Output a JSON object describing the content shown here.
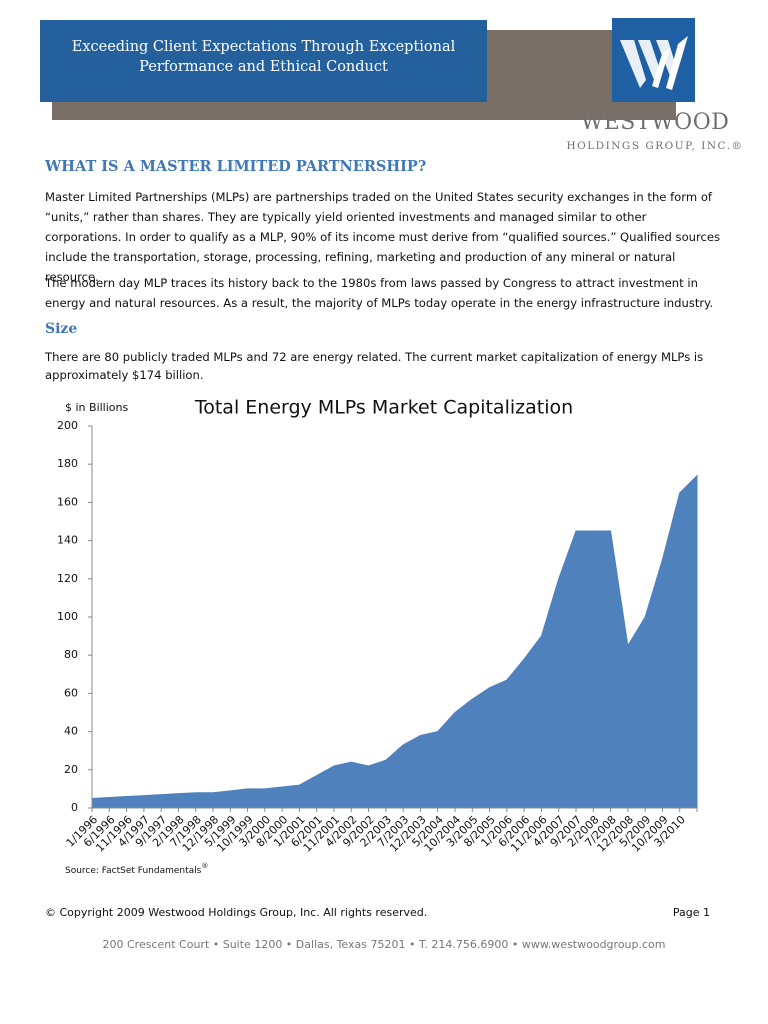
{
  "header": {
    "banner_lines": [
      "Exceeding Client Expectations Through Exceptional",
      "Performance and Ethical Conduct"
    ],
    "logo_name": "WESTWOOD",
    "logo_sub": "HOLDINGS GROUP, INC.®"
  },
  "section": {
    "heading": "WHAT IS A MASTER LIMITED PARTNERSHIP?",
    "paragraphs": [
      "Master Limited Partnerships (MLPs) are partnerships traded on the United States security exchanges in the form of “units,” rather than shares.  They are typically yield oriented investments and managed similar to other corporations.  In order to qualify as a MLP, 90% of its income must derive from “qualified sources.”  Qualified sources include the transportation, storage, processing, refining, marketing and production of any mineral or natural resource.",
      "The modern day MLP traces its history back to the 1980s from laws passed by Congress to attract investment in energy and natural resources.  As a result, the majority of MLPs today operate in the energy infrastructure industry."
    ],
    "subheading": "Size",
    "size_paragraph": "There are 80 publicly traded MLPs and 72 are energy related. The current market capitalization of energy MLPs is approximately $174 billion."
  },
  "chart_data": {
    "type": "area",
    "title": "Total Energy MLPs Market Capitalization",
    "y_label": "$ in Billions",
    "categories": [
      "1/1996",
      "6/1996",
      "11/1996",
      "4/1997",
      "9/1997",
      "2/1998",
      "7/1998",
      "12/1998",
      "5/1999",
      "10/1999",
      "3/2000",
      "8/2000",
      "1/2001",
      "6/2001",
      "11/2001",
      "4/2002",
      "9/2002",
      "2/2003",
      "7/2003",
      "12/2003",
      "5/2004",
      "10/2004",
      "3/2005",
      "8/2005",
      "1/2006",
      "6/2006",
      "11/2006",
      "4/2007",
      "9/2007",
      "2/2008",
      "7/2008",
      "12/2008",
      "5/2009",
      "10/2009",
      "3/2010",
      null
    ],
    "values": [
      5,
      5.5,
      6,
      6.5,
      7,
      7.5,
      8,
      8,
      9,
      10,
      10,
      11,
      12,
      17,
      22,
      24,
      22,
      25,
      33,
      38,
      40,
      50,
      57,
      63,
      67,
      78,
      90,
      120,
      145,
      145,
      145,
      85,
      100,
      130,
      165,
      174
    ],
    "color": "#4f81bd",
    "ylim": [
      0,
      200
    ],
    "yticks": [
      0,
      20,
      40,
      60,
      80,
      100,
      120,
      140,
      160,
      180,
      200
    ],
    "source": "Source: FactSet Fundamentals",
    "source_mark": "®"
  },
  "footer": {
    "copyright": "© Copyright 2009 Westwood Holdings Group, Inc.  All rights reserved.",
    "page": "Page 1",
    "address": "200 Crescent Court • Suite 1200 • Dallas, Texas 75201 • T. 214.756.6900 • www.westwoodgroup.com"
  }
}
